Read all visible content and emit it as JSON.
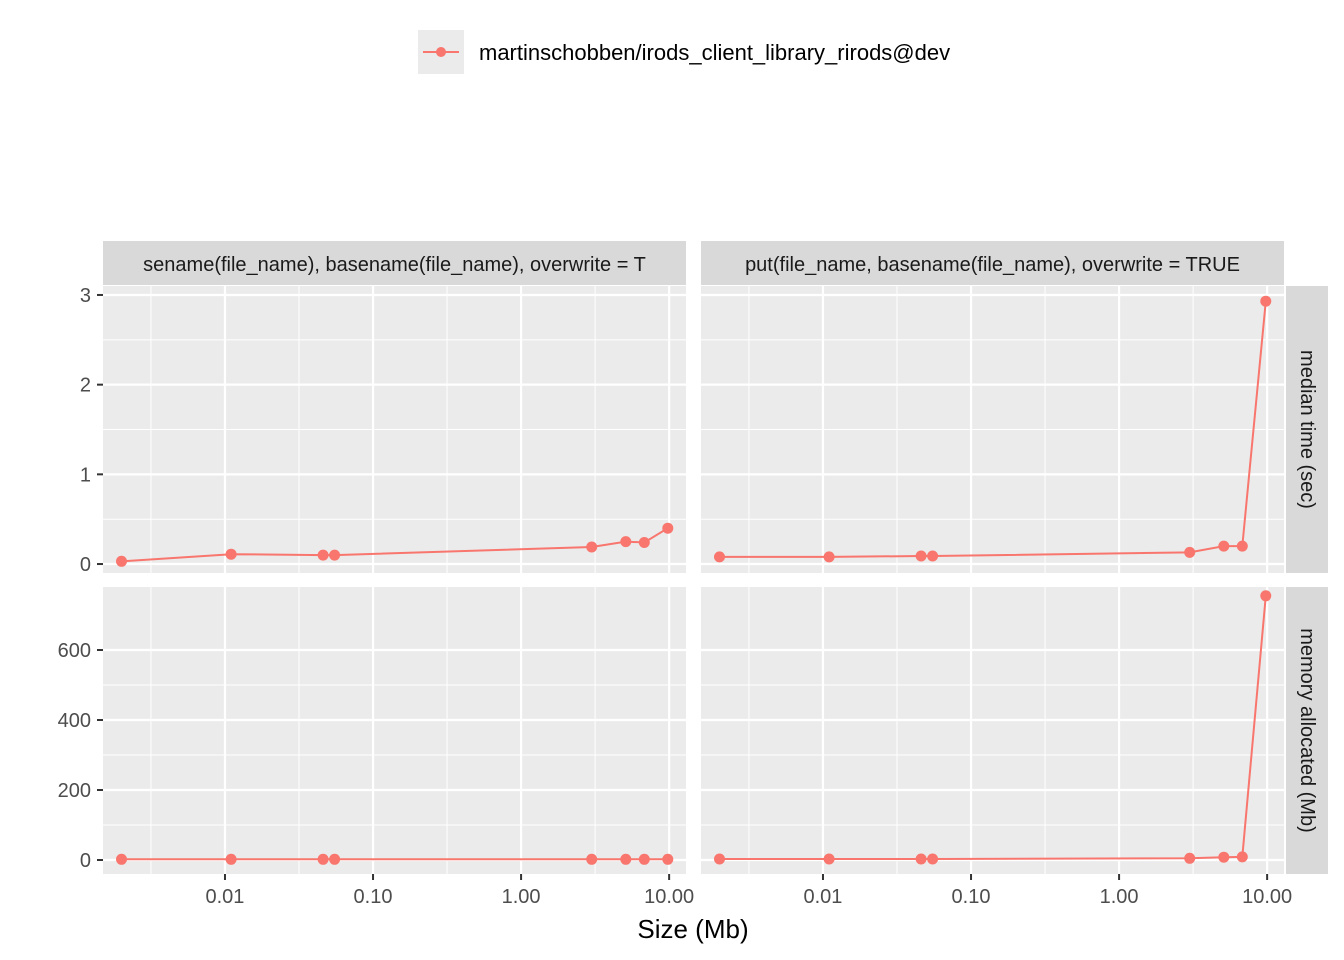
{
  "chart_data": {
    "type": "line",
    "xlabel": "Size (Mb)",
    "x_scale": "log10",
    "xlim": [
      0.0015,
      13
    ],
    "x_ticks": [
      0.01,
      0.1,
      1,
      10
    ],
    "x_tick_labels": [
      "0.01",
      "0.10",
      "1.00",
      "10.00"
    ],
    "legend": {
      "position": "top",
      "entries": [
        {
          "label": "martinschobben/irods_client_library_rirods@dev",
          "color": "#F8766D"
        }
      ]
    },
    "columns": [
      "basename(file_name), basename(file_name), overwrite = TRUE",
      "iput(file_name, basename(file_name), overwrite = TRUE"
    ],
    "columns_visible": [
      "sename(file_name), basename(file_name), overwrite = T",
      "put(file_name, basename(file_name), overwrite = TRUE"
    ],
    "rows": [
      "median time (sec)",
      "memory allocated (Mb)"
    ],
    "row_ylim": [
      [
        -0.1,
        3.1
      ],
      [
        -40,
        780
      ]
    ],
    "row_y_ticks": [
      [
        0,
        1,
        2,
        3
      ],
      [
        0,
        200,
        400,
        600
      ]
    ],
    "x": [
      0.002,
      0.011,
      0.046,
      0.055,
      3.0,
      5.1,
      6.8,
      9.8
    ],
    "panels": [
      {
        "row": 0,
        "col": 0,
        "y": [
          0.03,
          0.11,
          0.1,
          0.1,
          0.19,
          0.25,
          0.24,
          0.4
        ]
      },
      {
        "row": 0,
        "col": 1,
        "y": [
          0.08,
          0.08,
          0.09,
          0.09,
          0.13,
          0.2,
          0.2,
          2.93
        ]
      },
      {
        "row": 1,
        "col": 0,
        "y": [
          2,
          2,
          2,
          2,
          2,
          2,
          2,
          2
        ]
      },
      {
        "row": 1,
        "col": 1,
        "y": [
          3,
          3,
          3,
          3,
          5,
          8,
          9,
          755
        ]
      }
    ],
    "grid": true
  }
}
